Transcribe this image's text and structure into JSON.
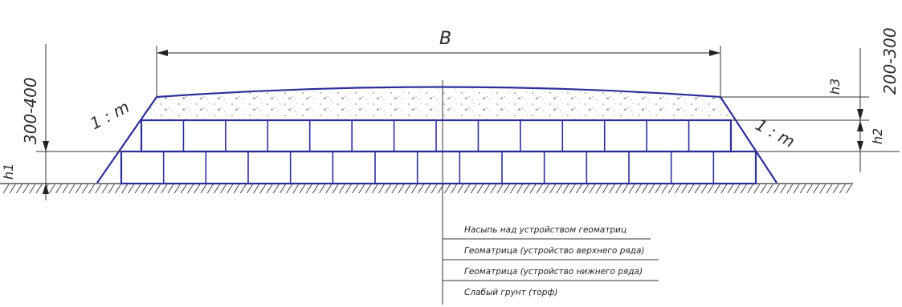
{
  "labels": {
    "width": "B",
    "slope_left": "1 : m",
    "slope_right": "1 : m",
    "range_left": "300-400",
    "range_right": "200-300",
    "h1": "h1",
    "h2": "h2",
    "h3": "h3"
  },
  "legend": [
    "Насыпь над устройством геоматриц",
    "Геоматрица (устройство верхнего ряда)",
    "Геоматрица (устройство нижнего ряда)",
    "Слабый грунт (торф)"
  ],
  "colors": {
    "structure": "#2b2f9a",
    "lines": "#333333"
  }
}
